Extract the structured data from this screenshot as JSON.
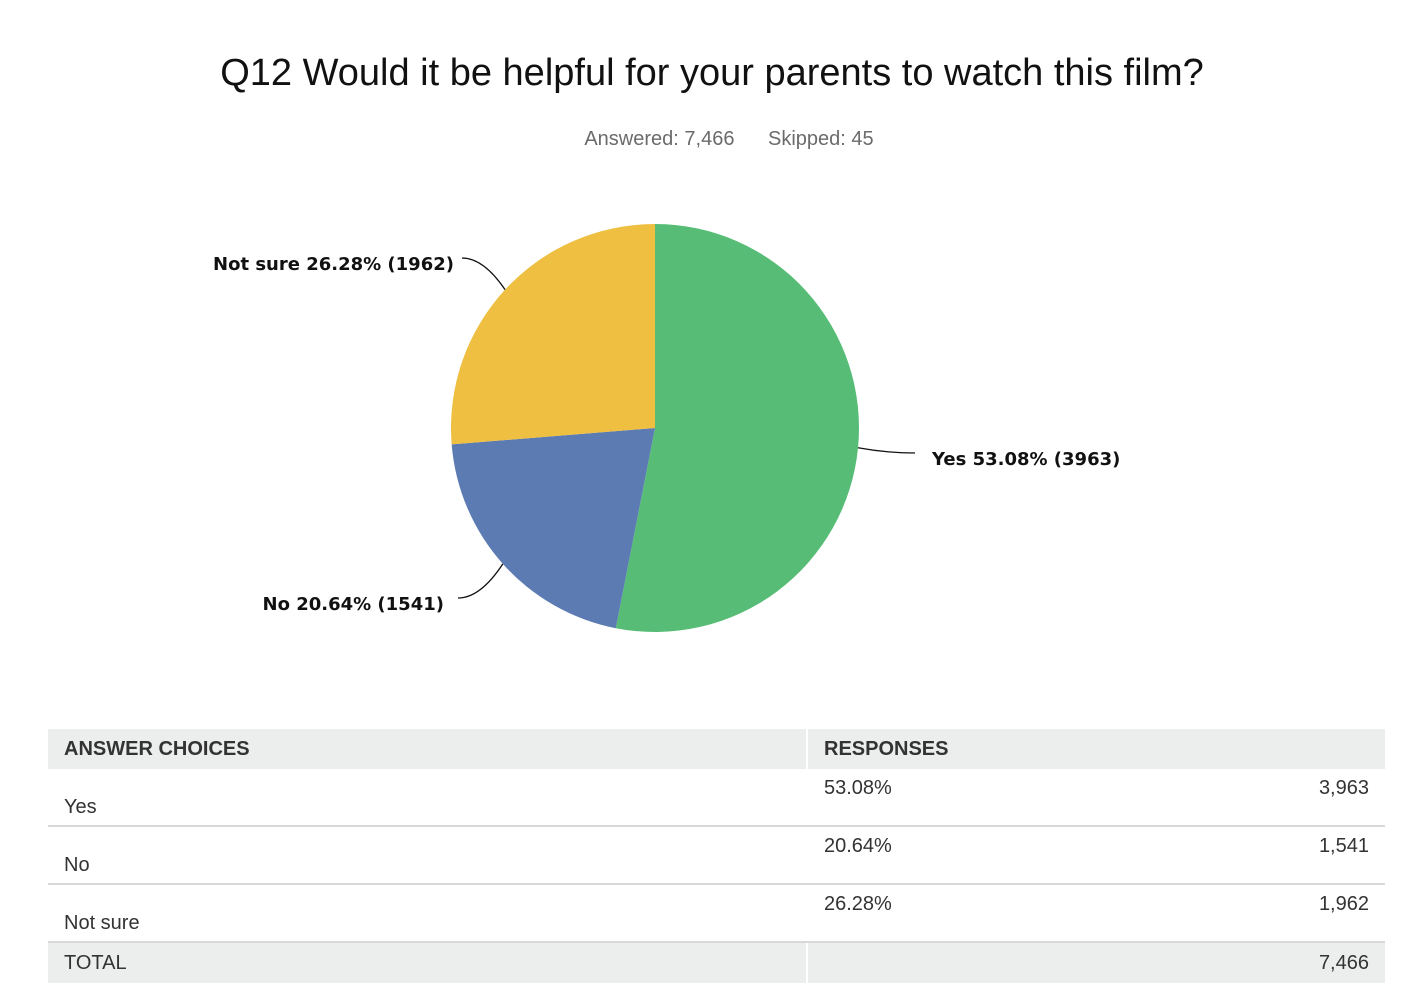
{
  "title": "Q12 Would it be helpful for your parents to watch this film?",
  "meta": {
    "answered": "Answered: 7,466",
    "skipped": "Skipped: 45"
  },
  "colors": {
    "Yes": "#57bd76",
    "No": "#5b7bb2",
    "Not sure": "#eebf41"
  },
  "chart_data": {
    "type": "pie",
    "title": "Q12 Would it be helpful for your parents to watch this film?",
    "categories": [
      "Yes",
      "No",
      "Not sure"
    ],
    "values": [
      53.08,
      20.64,
      26.28
    ],
    "counts": [
      3963,
      1541,
      1962
    ],
    "labels": [
      "Yes 53.08% (3963)",
      "No 20.64% (1541)",
      "Not sure 26.28% (1962)"
    ]
  },
  "table": {
    "headers": [
      "ANSWER CHOICES",
      "RESPONSES"
    ],
    "rows": [
      {
        "choice": "Yes",
        "percent": "53.08%",
        "count": "3,963"
      },
      {
        "choice": "No",
        "percent": "20.64%",
        "count": "1,541"
      },
      {
        "choice": "Not sure",
        "percent": "26.28%",
        "count": "1,962"
      }
    ],
    "total": {
      "label": "TOTAL",
      "count": "7,466"
    }
  }
}
